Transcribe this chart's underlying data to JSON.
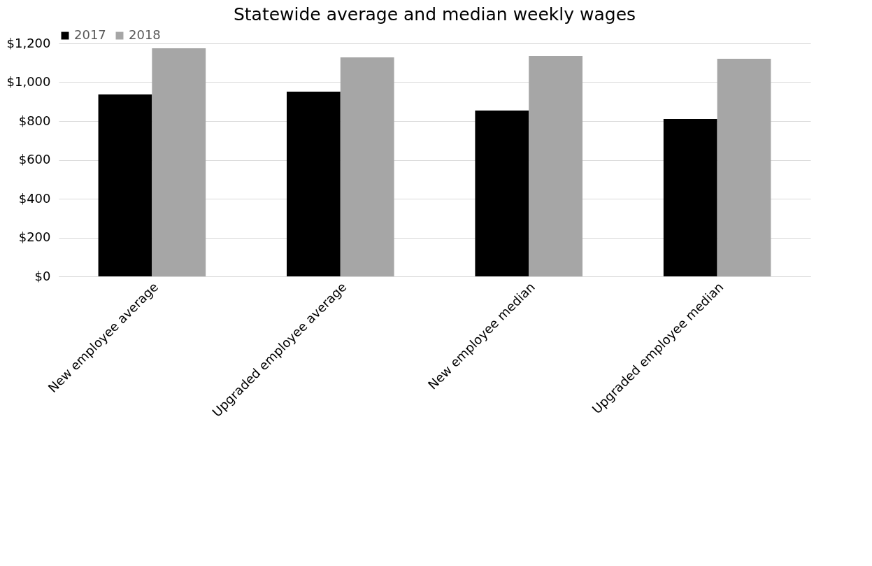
{
  "chart_data": {
    "type": "bar",
    "title": "Statewide average and median weekly wages",
    "categories": [
      "New employee average",
      "Upgraded employee average",
      "New employee median",
      "Upgraded employee median"
    ],
    "series": [
      {
        "name": "2017",
        "color": "#000000",
        "values": [
          937,
          951,
          854,
          811
        ]
      },
      {
        "name": "2018",
        "color": "#a6a6a6",
        "values": [
          1175,
          1128,
          1135,
          1121
        ]
      }
    ],
    "ylim": [
      0,
      1200
    ],
    "yticks": [
      {
        "value": 0,
        "label": "$0"
      },
      {
        "value": 200,
        "label": "$200"
      },
      {
        "value": 400,
        "label": "$400"
      },
      {
        "value": 600,
        "label": "$600"
      },
      {
        "value": 800,
        "label": "$800"
      },
      {
        "value": 1000,
        "label": "$1,000"
      },
      {
        "value": 1200,
        "label": "$1,200"
      }
    ],
    "grid": "y",
    "legend": "top"
  }
}
